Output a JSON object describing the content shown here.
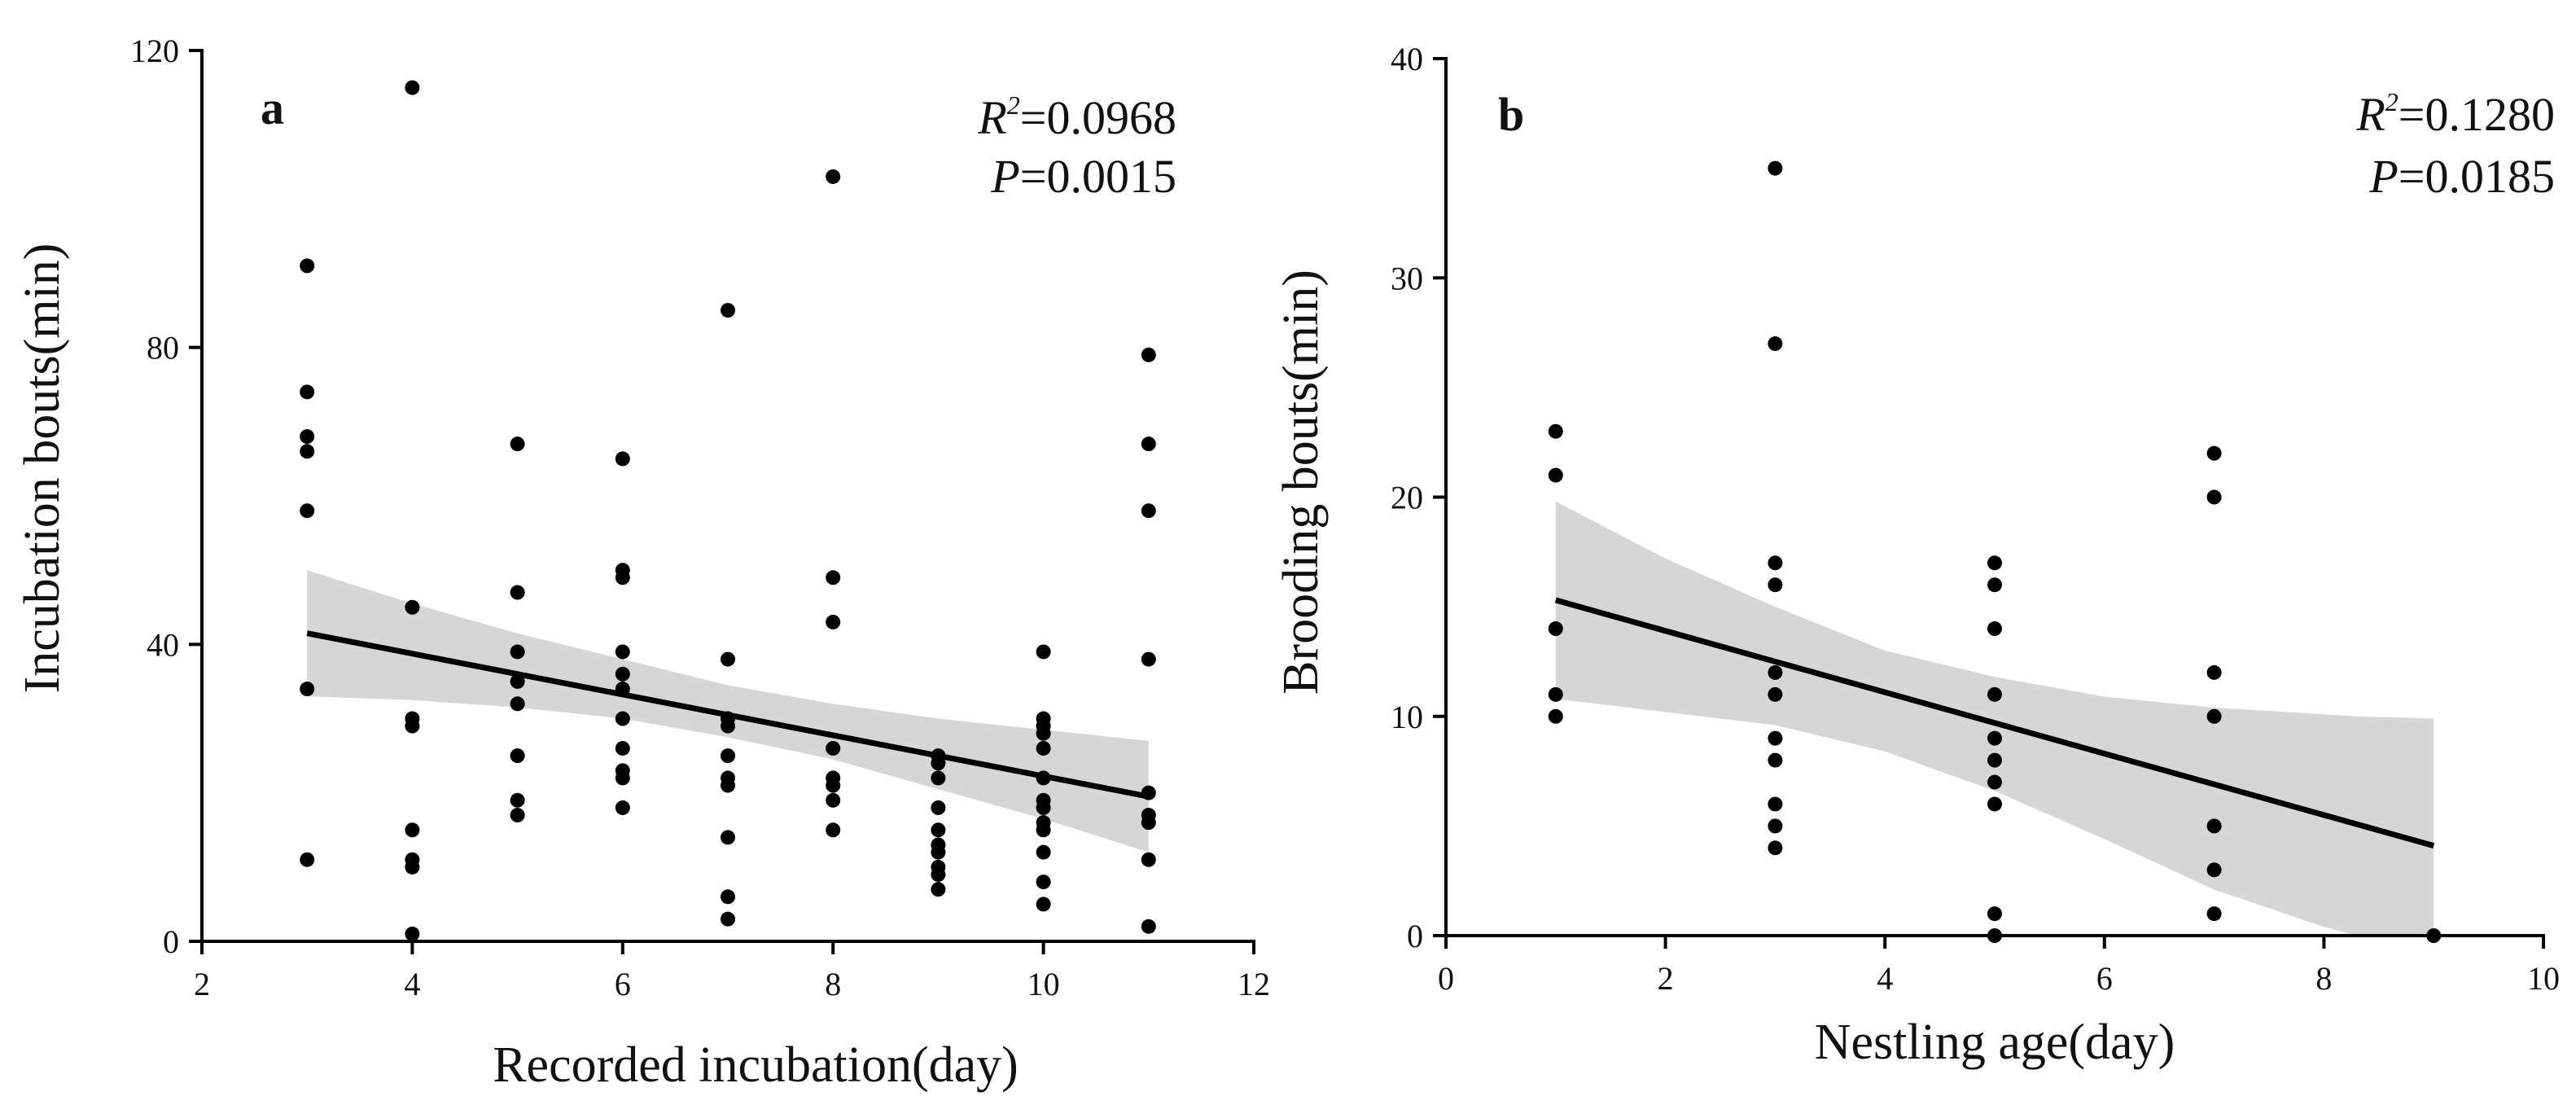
{
  "chart_data": [
    {
      "type": "scatter",
      "panel_label": "a",
      "xlabel": "Recorded incubation(day)",
      "ylabel": "Incubation bouts(min)",
      "xlim": [
        2,
        12
      ],
      "ylim": [
        0,
        120
      ],
      "xticks": [
        2,
        4,
        6,
        8,
        10,
        12
      ],
      "yticks": [
        0,
        40,
        80,
        120
      ],
      "xtick_labels": [
        "2",
        "4",
        "6",
        "8",
        "10",
        "12"
      ],
      "ytick_labels": [
        "0",
        "40",
        "80",
        "120"
      ],
      "stats": {
        "r2_label": "R",
        "r2_sup": "2",
        "r2_value": "=0.0968",
        "p_label": "P",
        "p_value": "=0.0015"
      },
      "points": [
        [
          3,
          91
        ],
        [
          3,
          74
        ],
        [
          3,
          68
        ],
        [
          3,
          66
        ],
        [
          3,
          58
        ],
        [
          3,
          34
        ],
        [
          3,
          11
        ],
        [
          4,
          115
        ],
        [
          4,
          45
        ],
        [
          4,
          30
        ],
        [
          4,
          29
        ],
        [
          4,
          15
        ],
        [
          4,
          11
        ],
        [
          4,
          10
        ],
        [
          4,
          1
        ],
        [
          5,
          67
        ],
        [
          5,
          47
        ],
        [
          5,
          39
        ],
        [
          5,
          35
        ],
        [
          5,
          32
        ],
        [
          5,
          25
        ],
        [
          5,
          19
        ],
        [
          5,
          17
        ],
        [
          6,
          65
        ],
        [
          6,
          50
        ],
        [
          6,
          49
        ],
        [
          6,
          39
        ],
        [
          6,
          36
        ],
        [
          6,
          34
        ],
        [
          6,
          30
        ],
        [
          6,
          26
        ],
        [
          6,
          23
        ],
        [
          6,
          22
        ],
        [
          6,
          18
        ],
        [
          7,
          85
        ],
        [
          7,
          38
        ],
        [
          7,
          30
        ],
        [
          7,
          29
        ],
        [
          7,
          25
        ],
        [
          7,
          22
        ],
        [
          7,
          21
        ],
        [
          7,
          14
        ],
        [
          7,
          6
        ],
        [
          7,
          3
        ],
        [
          8,
          103
        ],
        [
          8,
          49
        ],
        [
          8,
          43
        ],
        [
          8,
          26
        ],
        [
          8,
          22
        ],
        [
          8,
          21
        ],
        [
          8,
          19
        ],
        [
          8,
          15
        ],
        [
          9,
          25
        ],
        [
          9,
          24
        ],
        [
          9,
          22
        ],
        [
          9,
          18
        ],
        [
          9,
          15
        ],
        [
          9,
          13
        ],
        [
          9,
          12
        ],
        [
          9,
          10
        ],
        [
          9,
          9
        ],
        [
          9,
          7
        ],
        [
          10,
          39
        ],
        [
          10,
          30
        ],
        [
          10,
          29
        ],
        [
          10,
          28
        ],
        [
          10,
          26
        ],
        [
          10,
          22
        ],
        [
          10,
          19
        ],
        [
          10,
          18
        ],
        [
          10,
          16
        ],
        [
          10,
          15
        ],
        [
          10,
          12
        ],
        [
          10,
          8
        ],
        [
          10,
          5
        ],
        [
          11,
          79
        ],
        [
          11,
          67
        ],
        [
          11,
          58
        ],
        [
          11,
          38
        ],
        [
          11,
          20
        ],
        [
          11,
          17
        ],
        [
          11,
          16
        ],
        [
          11,
          11
        ],
        [
          11,
          2
        ]
      ],
      "fit_line": {
        "x": [
          3,
          11
        ],
        "y": [
          41.5,
          19.5
        ]
      },
      "ci_band": {
        "x": [
          3,
          4,
          5,
          6,
          7,
          8,
          9,
          10,
          11
        ],
        "upper": [
          50,
          45.5,
          41.5,
          38,
          34.5,
          32,
          30,
          28.5,
          27
        ],
        "lower": [
          33,
          32.5,
          31.5,
          30,
          27.5,
          24.5,
          20.5,
          16.5,
          12
        ]
      }
    },
    {
      "type": "scatter",
      "panel_label": "b",
      "xlabel": "Nestling age(day)",
      "ylabel": "Brooding bouts(min)",
      "xlim": [
        0,
        10
      ],
      "ylim": [
        0,
        40
      ],
      "xticks": [
        0,
        2,
        4,
        6,
        8,
        10
      ],
      "yticks": [
        0,
        10,
        20,
        30,
        40
      ],
      "xtick_labels": [
        "0",
        "2",
        "4",
        "6",
        "8",
        "10"
      ],
      "ytick_labels": [
        "0",
        "10",
        "20",
        "30",
        "40"
      ],
      "stats": {
        "r2_label": "R",
        "r2_sup": "2",
        "r2_value": "=0.1280",
        "p_label": "P",
        "p_value": "=0.0185"
      },
      "points": [
        [
          1,
          23
        ],
        [
          1,
          21
        ],
        [
          1,
          14
        ],
        [
          1,
          11
        ],
        [
          1,
          10
        ],
        [
          3,
          35
        ],
        [
          3,
          27
        ],
        [
          3,
          17
        ],
        [
          3,
          16
        ],
        [
          3,
          12
        ],
        [
          3,
          11
        ],
        [
          3,
          9
        ],
        [
          3,
          8
        ],
        [
          3,
          6
        ],
        [
          3,
          5
        ],
        [
          3,
          4
        ],
        [
          5,
          17
        ],
        [
          5,
          16
        ],
        [
          5,
          14
        ],
        [
          5,
          11
        ],
        [
          5,
          9
        ],
        [
          5,
          8
        ],
        [
          5,
          7
        ],
        [
          5,
          6
        ],
        [
          5,
          1
        ],
        [
          5,
          0
        ],
        [
          7,
          22
        ],
        [
          7,
          20
        ],
        [
          7,
          12
        ],
        [
          7,
          10
        ],
        [
          7,
          5
        ],
        [
          7,
          3
        ],
        [
          7,
          1
        ],
        [
          9,
          0
        ]
      ],
      "fit_line": {
        "x": [
          1,
          9
        ],
        "y": [
          15.3,
          4.1
        ]
      },
      "ci_band": {
        "x": [
          1,
          2,
          3,
          4,
          5,
          6,
          7,
          8,
          8.3,
          9
        ],
        "upper": [
          19.8,
          17.2,
          15,
          13,
          11.8,
          10.9,
          10.4,
          10.1,
          10,
          9.9
        ],
        "lower": [
          10.8,
          10.2,
          9.6,
          8.4,
          6.6,
          4.4,
          2.1,
          0.4,
          0,
          0
        ]
      }
    }
  ]
}
